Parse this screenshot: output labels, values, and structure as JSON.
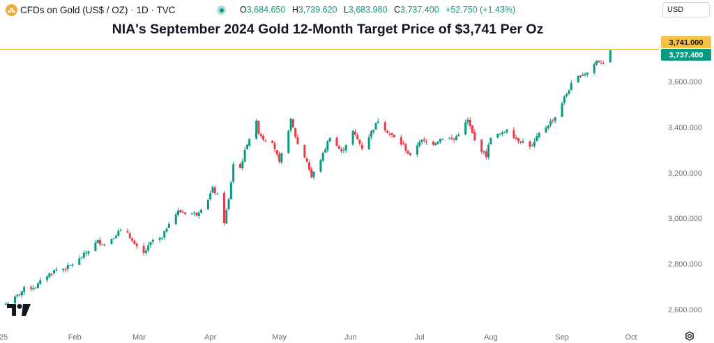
{
  "header": {
    "symbol": "CFDs on Gold (US$ / OZ) · 1D · TVC",
    "ohlc": [
      {
        "key": "O",
        "value": "3,684.650"
      },
      {
        "key": "H",
        "value": "3,739.620"
      },
      {
        "key": "L",
        "value": "3,683.980"
      },
      {
        "key": "C",
        "value": "3,737.400"
      }
    ],
    "change": "+52.750 (+1.43%)",
    "currency": "USD"
  },
  "colors": {
    "up": "#089981",
    "down": "#f23645",
    "target_line": "#f2c94c",
    "target_tag": "#f5c242",
    "price_tag": "#089981",
    "text_muted": "#6a6d78"
  },
  "chart_data": {
    "type": "candlestick",
    "title": "NIA's September 2024 Gold 12-Month Target Price of $3,741 Per Oz",
    "ylim": [
      2520,
      3790
    ],
    "y_ticks": [
      {
        "value": 2600,
        "label": "2,600.000"
      },
      {
        "value": 2800,
        "label": "2,800.000"
      },
      {
        "value": 3000,
        "label": "3,000.000"
      },
      {
        "value": 3200,
        "label": "3,200.000"
      },
      {
        "value": 3400,
        "label": "3,400.000"
      },
      {
        "value": 3600,
        "label": "3,600.000"
      }
    ],
    "x_ticks": [
      {
        "label": "25",
        "date": "2025-01-01"
      },
      {
        "label": "Feb",
        "date": "2025-02-01"
      },
      {
        "label": "Mar",
        "date": "2025-03-01"
      },
      {
        "label": "Apr",
        "date": "2025-04-01"
      },
      {
        "label": "May",
        "date": "2025-05-01"
      },
      {
        "label": "Jun",
        "date": "2025-06-01"
      },
      {
        "label": "Jul",
        "date": "2025-07-01"
      },
      {
        "label": "Aug",
        "date": "2025-08-01"
      },
      {
        "label": "Sep",
        "date": "2025-09-01"
      },
      {
        "label": "Oct",
        "date": "2025-10-01"
      }
    ],
    "target_line": {
      "value": 3741.0,
      "label": "3,741.000"
    },
    "last_price": {
      "value": 3737.4,
      "label": "3,737.400"
    },
    "closes": [
      {
        "date": "2025-01-02",
        "close": 2625
      },
      {
        "date": "2025-01-06",
        "close": 2650
      },
      {
        "date": "2025-01-10",
        "close": 2690
      },
      {
        "date": "2025-01-15",
        "close": 2700
      },
      {
        "date": "2025-01-20",
        "close": 2750
      },
      {
        "date": "2025-01-24",
        "close": 2775
      },
      {
        "date": "2025-01-28",
        "close": 2780
      },
      {
        "date": "2025-02-03",
        "close": 2820
      },
      {
        "date": "2025-02-07",
        "close": 2860
      },
      {
        "date": "2025-02-11",
        "close": 2900
      },
      {
        "date": "2025-02-14",
        "close": 2885
      },
      {
        "date": "2025-02-20",
        "close": 2940
      },
      {
        "date": "2025-02-24",
        "close": 2940
      },
      {
        "date": "2025-02-27",
        "close": 2880
      },
      {
        "date": "2025-03-03",
        "close": 2845
      },
      {
        "date": "2025-03-07",
        "close": 2905
      },
      {
        "date": "2025-03-11",
        "close": 2910
      },
      {
        "date": "2025-03-14",
        "close": 2985
      },
      {
        "date": "2025-03-18",
        "close": 3030
      },
      {
        "date": "2025-03-21",
        "close": 3025
      },
      {
        "date": "2025-03-26",
        "close": 3020
      },
      {
        "date": "2025-03-31",
        "close": 3085
      },
      {
        "date": "2025-04-02",
        "close": 3130
      },
      {
        "date": "2025-04-04",
        "close": 3100
      },
      {
        "date": "2025-04-07",
        "close": 2985
      },
      {
        "date": "2025-04-09",
        "close": 3080
      },
      {
        "date": "2025-04-11",
        "close": 3240
      },
      {
        "date": "2025-04-14",
        "close": 3220
      },
      {
        "date": "2025-04-17",
        "close": 3330
      },
      {
        "date": "2025-04-21",
        "close": 3420
      },
      {
        "date": "2025-04-22",
        "close": 3380
      },
      {
        "date": "2025-04-24",
        "close": 3350
      },
      {
        "date": "2025-04-28",
        "close": 3340
      },
      {
        "date": "2025-05-01",
        "close": 3240
      },
      {
        "date": "2025-05-06",
        "close": 3430
      },
      {
        "date": "2025-05-09",
        "close": 3325
      },
      {
        "date": "2025-05-13",
        "close": 3250
      },
      {
        "date": "2025-05-15",
        "close": 3180
      },
      {
        "date": "2025-05-20",
        "close": 3280
      },
      {
        "date": "2025-05-23",
        "close": 3360
      },
      {
        "date": "2025-05-28",
        "close": 3290
      },
      {
        "date": "2025-06-02",
        "close": 3380
      },
      {
        "date": "2025-06-06",
        "close": 3310
      },
      {
        "date": "2025-06-13",
        "close": 3430
      },
      {
        "date": "2025-06-18",
        "close": 3370
      },
      {
        "date": "2025-06-24",
        "close": 3320
      },
      {
        "date": "2025-06-27",
        "close": 3270
      },
      {
        "date": "2025-07-01",
        "close": 3340
      },
      {
        "date": "2025-07-07",
        "close": 3330
      },
      {
        "date": "2025-07-11",
        "close": 3355
      },
      {
        "date": "2025-07-16",
        "close": 3345
      },
      {
        "date": "2025-07-22",
        "close": 3430
      },
      {
        "date": "2025-07-25",
        "close": 3340
      },
      {
        "date": "2025-07-30",
        "close": 3275
      },
      {
        "date": "2025-08-01",
        "close": 3360
      },
      {
        "date": "2025-08-06",
        "close": 3370
      },
      {
        "date": "2025-08-08",
        "close": 3395
      },
      {
        "date": "2025-08-12",
        "close": 3350
      },
      {
        "date": "2025-08-19",
        "close": 3315
      },
      {
        "date": "2025-08-22",
        "close": 3370
      },
      {
        "date": "2025-08-29",
        "close": 3445
      },
      {
        "date": "2025-09-02",
        "close": 3530
      },
      {
        "date": "2025-09-05",
        "close": 3585
      },
      {
        "date": "2025-09-09",
        "close": 3630
      },
      {
        "date": "2025-09-12",
        "close": 3640
      },
      {
        "date": "2025-09-16",
        "close": 3690
      },
      {
        "date": "2025-09-19",
        "close": 3685
      },
      {
        "date": "2025-09-22",
        "close": 3737.4
      }
    ]
  }
}
